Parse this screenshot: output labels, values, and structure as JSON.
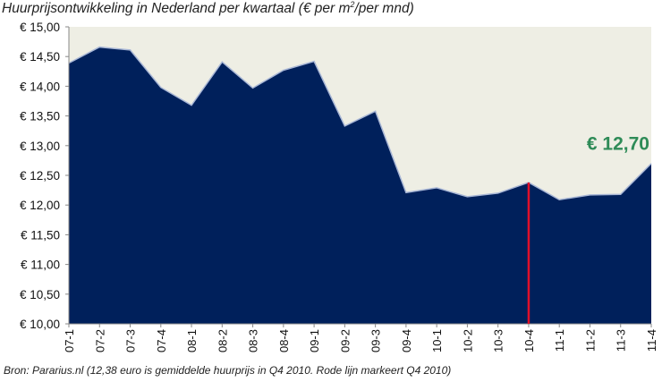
{
  "chart_data": {
    "type": "area",
    "title": "Huurprijsontwikkeling in Nederland per kwartaal (€ per m²/per mnd)",
    "title_parts": {
      "before": "Huurprijsontwikkeling in Nederland per kwartaal (€ per m",
      "sup": "2",
      "after": "/per mnd)"
    },
    "categories": [
      "07-1",
      "07-2",
      "07-3",
      "07-4",
      "08-1",
      "08-2",
      "08-3",
      "08-4",
      "09-1",
      "09-2",
      "09-3",
      "09-4",
      "10-1",
      "10-2",
      "10-3",
      "10-4",
      "11-1",
      "11-2",
      "11-3",
      "11-4"
    ],
    "values": [
      14.39,
      14.66,
      14.61,
      13.98,
      13.68,
      14.41,
      13.97,
      14.27,
      14.42,
      13.33,
      13.58,
      12.21,
      12.29,
      12.14,
      12.2,
      12.38,
      12.09,
      12.17,
      12.18,
      12.7
    ],
    "ylim": [
      10.0,
      15.0
    ],
    "ytick_step": 0.5,
    "ytick_labels": [
      "€ 10,00",
      "€ 10,50",
      "€ 11,00",
      "€ 11,50",
      "€ 12,00",
      "€ 12,50",
      "€ 13,00",
      "€ 13,50",
      "€ 14,00",
      "€ 14,50",
      "€ 15,00"
    ],
    "grid": false,
    "fill_color": "#00205b",
    "plot_background": "#eeeee4",
    "marker": {
      "category": "10-4",
      "value": 12.38,
      "color": "#e0102a"
    },
    "callout": {
      "text": "€ 12,70",
      "category": "11-4",
      "color": "#2e8b57"
    },
    "source": "Bron: Pararius.nl  (12,38 euro is gemiddelde huurprijs in Q4 2010. Rode lijn markeert Q4 2010)"
  }
}
